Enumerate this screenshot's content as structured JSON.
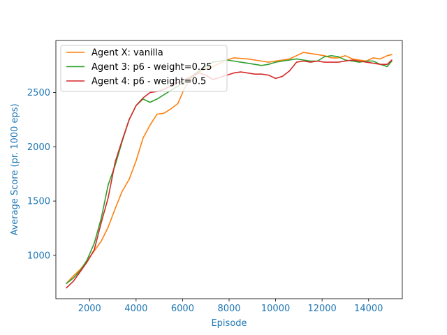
{
  "chart_data": {
    "type": "line",
    "title": "",
    "xlabel": "Episode",
    "ylabel": "Average Score (pr. 1000 eps)",
    "xlim": [
      550,
      15450
    ],
    "ylim": [
      600,
      2980
    ],
    "xticks": [
      2000,
      4000,
      6000,
      8000,
      10000,
      12000,
      14000
    ],
    "yticks": [
      1000,
      1500,
      2000,
      2500
    ],
    "grid": false,
    "legend_position": "upper-left",
    "label_color": "#1f77b4",
    "series": [
      {
        "name": "Agent X: vanilla",
        "color": "#ff7f0e",
        "x": [
          1000,
          1300,
          1600,
          1900,
          2200,
          2500,
          2800,
          3100,
          3400,
          3700,
          4000,
          4300,
          4600,
          4900,
          5200,
          5500,
          5800,
          6100,
          6400,
          6700,
          7000,
          7300,
          7600,
          7900,
          8200,
          8500,
          8800,
          9100,
          9400,
          9700,
          10000,
          10300,
          10600,
          10900,
          11200,
          11500,
          11800,
          12100,
          12400,
          12700,
          13000,
          13300,
          13600,
          13900,
          14200,
          14500,
          14800,
          15000
        ],
        "y": [
          740,
          810,
          870,
          950,
          1040,
          1130,
          1260,
          1430,
          1590,
          1700,
          1870,
          2080,
          2200,
          2300,
          2310,
          2350,
          2400,
          2550,
          2640,
          2690,
          2720,
          2740,
          2770,
          2800,
          2820,
          2815,
          2810,
          2800,
          2790,
          2780,
          2790,
          2800,
          2810,
          2840,
          2870,
          2860,
          2850,
          2840,
          2820,
          2820,
          2840,
          2810,
          2800,
          2790,
          2820,
          2810,
          2840,
          2850
        ]
      },
      {
        "name": "Agent 3: p6 - weight=0.25",
        "color": "#2ca02c",
        "x": [
          1000,
          1300,
          1600,
          1900,
          2200,
          2500,
          2800,
          3100,
          3400,
          3700,
          4000,
          4300,
          4600,
          4900,
          5200,
          5500,
          5800,
          6100,
          6400,
          6700,
          7000,
          7300,
          7600,
          7900,
          8200,
          8500,
          8800,
          9100,
          9400,
          9700,
          10000,
          10300,
          10600,
          10900,
          11200,
          11500,
          11800,
          12100,
          12400,
          12700,
          13000,
          13300,
          13600,
          13900,
          14200,
          14500,
          14800,
          15000
        ],
        "y": [
          740,
          790,
          860,
          960,
          1110,
          1340,
          1650,
          1830,
          2050,
          2250,
          2380,
          2440,
          2410,
          2440,
          2480,
          2520,
          2560,
          2600,
          2650,
          2700,
          2740,
          2780,
          2790,
          2800,
          2790,
          2780,
          2770,
          2760,
          2750,
          2760,
          2780,
          2790,
          2800,
          2810,
          2800,
          2790,
          2790,
          2830,
          2840,
          2830,
          2800,
          2790,
          2780,
          2790,
          2790,
          2760,
          2740,
          2790
        ]
      },
      {
        "name": "Agent 4: p6 - weight=0.5",
        "color": "#d62728",
        "x": [
          1000,
          1300,
          1600,
          1900,
          2200,
          2500,
          2800,
          3100,
          3400,
          3700,
          4000,
          4300,
          4600,
          4900,
          5200,
          5500,
          5800,
          6100,
          6400,
          6700,
          7000,
          7300,
          7600,
          7900,
          8200,
          8500,
          8800,
          9100,
          9400,
          9700,
          10000,
          10300,
          10600,
          10900,
          11200,
          11500,
          11800,
          12100,
          12400,
          12700,
          13000,
          13300,
          13600,
          13900,
          14200,
          14500,
          14800,
          15000
        ],
        "y": [
          700,
          760,
          850,
          940,
          1050,
          1300,
          1530,
          1860,
          2060,
          2250,
          2380,
          2450,
          2500,
          2510,
          2530,
          2560,
          2590,
          2620,
          2650,
          2680,
          2660,
          2620,
          2640,
          2660,
          2680,
          2690,
          2680,
          2670,
          2670,
          2660,
          2630,
          2650,
          2700,
          2780,
          2790,
          2780,
          2790,
          2780,
          2780,
          2780,
          2790,
          2800,
          2790,
          2780,
          2770,
          2760,
          2760,
          2800
        ]
      }
    ]
  }
}
